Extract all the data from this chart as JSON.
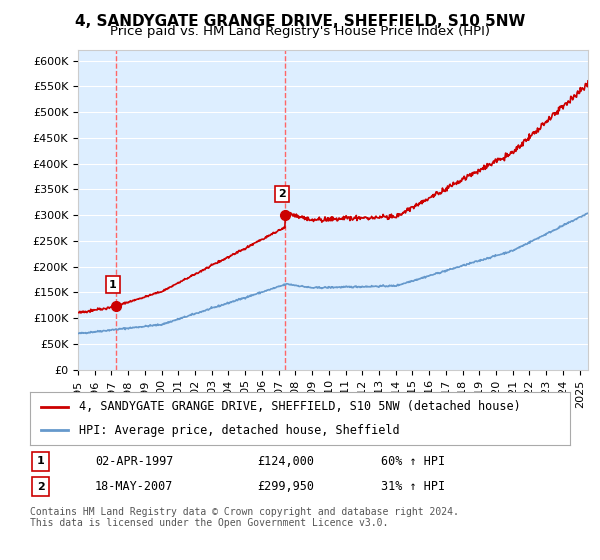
{
  "title": "4, SANDYGATE GRANGE DRIVE, SHEFFIELD, S10 5NW",
  "subtitle": "Price paid vs. HM Land Registry's House Price Index (HPI)",
  "ylim": [
    0,
    620000
  ],
  "yticks": [
    0,
    50000,
    100000,
    150000,
    200000,
    250000,
    300000,
    350000,
    400000,
    450000,
    500000,
    550000,
    600000
  ],
  "xlim_start": 1995.0,
  "xlim_end": 2025.5,
  "sale1_x": 1997.25,
  "sale1_y": 124000,
  "sale1_label": "1",
  "sale2_x": 2007.37,
  "sale2_y": 299950,
  "sale2_label": "2",
  "red_line_color": "#cc0000",
  "blue_line_color": "#6699cc",
  "background_color": "#ddeeff",
  "plot_bg_color": "#ddeeff",
  "grid_color": "#ffffff",
  "vline_color": "#ff6666",
  "marker_color": "#cc0000",
  "legend_label_red": "4, SANDYGATE GRANGE DRIVE, SHEFFIELD, S10 5NW (detached house)",
  "legend_label_blue": "HPI: Average price, detached house, Sheffield",
  "table_row1": [
    "1",
    "02-APR-1997",
    "£124,000",
    "60% ↑ HPI"
  ],
  "table_row2": [
    "2",
    "18-MAY-2007",
    "£299,950",
    "31% ↑ HPI"
  ],
  "footer": "Contains HM Land Registry data © Crown copyright and database right 2024.\nThis data is licensed under the Open Government Licence v3.0.",
  "title_fontsize": 11,
  "subtitle_fontsize": 9.5,
  "tick_label_fontsize": 8,
  "legend_fontsize": 8.5
}
